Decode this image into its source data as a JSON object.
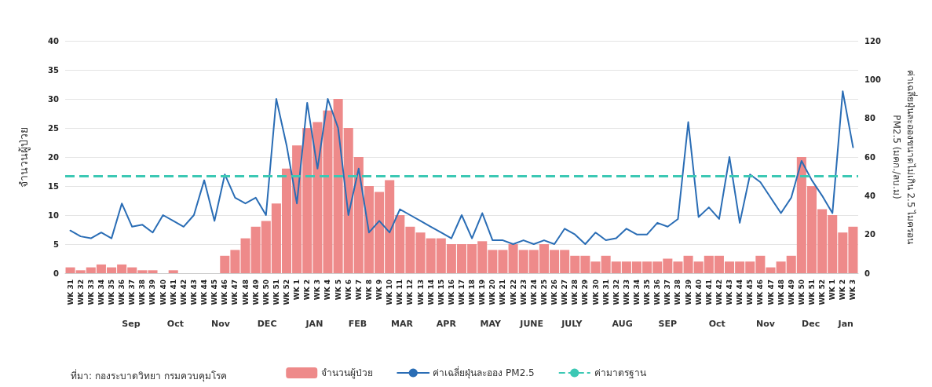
{
  "chart_data": {
    "type": "bar",
    "ylabel": "จำนวนผู้ป่วย",
    "y2label": "ค่าเฉลี่ยฝุ่นละอองขนาดไม่เกิน 2.5 ไมครอน\nPM2.5 (มคก./ลบ.ม)",
    "categories": [
      "WK 31",
      "WK 32",
      "WK 33",
      "WK 34",
      "WK 35",
      "WK 36",
      "WK 37",
      "WK 38",
      "WK 39",
      "WK 40",
      "WK 41",
      "WK 42",
      "WK 43",
      "WK 44",
      "WK 45",
      "WK 46",
      "WK 47",
      "WK 48",
      "WK 49",
      "WK 50",
      "WK 51",
      "WK 52",
      "WK 1",
      "WK 2",
      "WK 3",
      "WK 4",
      "WK 5",
      "WK 6",
      "WK 7",
      "WK 8",
      "WK 9",
      "WK 10",
      "WK 11",
      "WK 12",
      "WK 13",
      "WK 14",
      "WK 15",
      "WK 16",
      "WK 17",
      "WK 18",
      "WK 19",
      "WK 20",
      "WK 21",
      "WK 22",
      "WK 23",
      "WK 24",
      "WK 25",
      "WK 26",
      "WK 27",
      "WK 28",
      "WK 29",
      "WK 30",
      "WK 31",
      "WK 32",
      "WK 33",
      "WK 34",
      "WK 35",
      "WK 36",
      "WK 37",
      "WK 38",
      "WK 39",
      "WK 40",
      "WK 41",
      "WK 42",
      "WK 43",
      "WK 44",
      "WK 45",
      "WK 46",
      "WK 47",
      "WK 48",
      "WK 49",
      "WK 50",
      "WK 51",
      "WK 52",
      "WK 1",
      "WK 2",
      "WK 3"
    ],
    "series": [
      {
        "name": "จำนวนผู้ป่วย",
        "color": "#ee8a8a",
        "values": [
          1,
          0.5,
          1,
          1.5,
          1,
          1.5,
          1,
          0.5,
          0.5,
          0,
          0.5,
          0,
          0,
          0,
          0,
          3,
          4,
          6,
          8,
          9,
          12,
          18,
          22,
          25,
          26,
          28,
          30,
          25,
          20,
          15,
          14,
          16,
          10,
          8,
          7,
          6,
          6,
          5,
          5,
          5,
          5.5,
          4,
          4,
          5,
          4,
          4,
          5,
          4,
          4,
          3,
          3,
          2,
          3,
          2,
          2,
          2,
          2,
          2,
          2.5,
          2,
          3,
          2,
          3,
          3,
          2,
          2,
          2,
          3,
          1,
          2,
          3,
          20,
          15,
          11,
          10,
          7,
          8
        ]
      },
      {
        "name": "ค่าเฉลี่ยฝุ่นละออง PM2.5",
        "type": "line",
        "axis": "y2",
        "color": "#2a6db5",
        "values": [
          22,
          19,
          18,
          21,
          18,
          36,
          24,
          25,
          21,
          30,
          27,
          24,
          30,
          48,
          27,
          51,
          39,
          36,
          39,
          30,
          90,
          66,
          36,
          88,
          54,
          90,
          75,
          30,
          54,
          21,
          27,
          21,
          33,
          30,
          27,
          24,
          21,
          18,
          30,
          18,
          31,
          17,
          17,
          15,
          17,
          15,
          17,
          15,
          23,
          20,
          15,
          21,
          17,
          18,
          23,
          20,
          20,
          26,
          24,
          28,
          78,
          29,
          34,
          28,
          60,
          26,
          51,
          47,
          39,
          31,
          39,
          58,
          48,
          40,
          31,
          94,
          65
        ]
      }
    ],
    "ref_lines": [
      {
        "axis": "y2",
        "value": 50,
        "label": "ค่ามาตรฐาน",
        "color": "#3cc8b4",
        "line_style": "dashed"
      }
    ],
    "ylim": [
      0,
      40
    ],
    "yticks": [
      0,
      5,
      10,
      15,
      20,
      25,
      30,
      35,
      40
    ],
    "y2lim": [
      0,
      120
    ],
    "y2ticks": [
      0,
      20,
      40,
      60,
      80,
      100,
      120
    ],
    "grid": "y",
    "legend": "bottom",
    "marker": "none",
    "annotations": [
      "ที่มา: กองระบาดวิทยา กรมควบคุมโรค",
      "Sep",
      "Oct",
      "Nov",
      "DEC",
      "JAN",
      "FEB",
      "MAR",
      "APR",
      "MAY",
      "JUNE",
      "JULY",
      "AUG",
      "SEP",
      "Oct",
      "Nov",
      "Dec",
      "Jan"
    ]
  }
}
